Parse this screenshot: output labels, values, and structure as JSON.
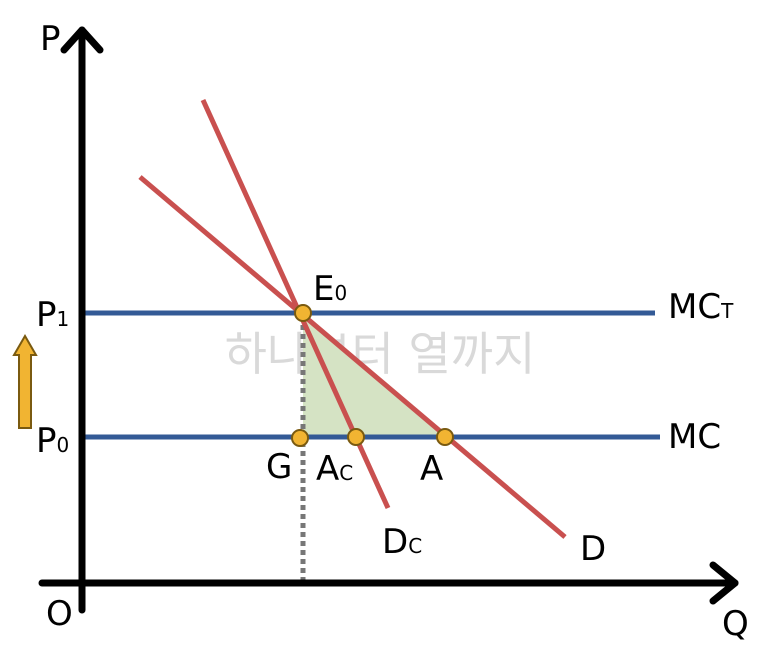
{
  "axes": {
    "y": "P",
    "x": "Q",
    "origin": "O"
  },
  "prices": [
    {
      "base": "P",
      "sub": "1"
    },
    {
      "base": "P",
      "sub": "0"
    }
  ],
  "curves": [
    {
      "base": "MC",
      "sub": "T"
    },
    {
      "base": "MC",
      "sub": ""
    },
    {
      "base": "D",
      "sub": "C"
    },
    {
      "base": "D",
      "sub": ""
    }
  ],
  "points": [
    {
      "base": "E",
      "sub": "0"
    },
    {
      "base": "G",
      "sub": ""
    },
    {
      "base": "A",
      "sub": "C"
    },
    {
      "base": "A",
      "sub": ""
    }
  ],
  "watermark": "하나부터 열까지"
}
